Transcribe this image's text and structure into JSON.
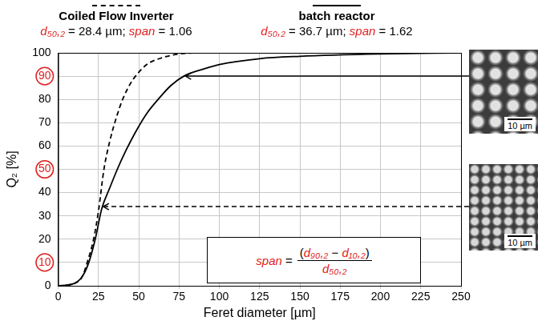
{
  "chart_data": {
    "type": "line",
    "x_label": "Feret diameter [µm]",
    "y_label": "Q₂ [%]",
    "xlim": [
      0,
      250
    ],
    "xticks": [
      0,
      25,
      50,
      75,
      100,
      125,
      150,
      175,
      200,
      225,
      250
    ],
    "ylim": [
      0,
      100
    ],
    "yticks": [
      0,
      10,
      20,
      30,
      40,
      50,
      60,
      70,
      80,
      90,
      100
    ],
    "grid": true,
    "legend": "top",
    "series": [
      {
        "name": "Coiled Flow Inverter",
        "color": "#000000",
        "line_style": "dashed",
        "stats": "d₅₀,₂ = 28.4 µm; span = 1.06",
        "x": [
          0,
          10,
          15,
          18,
          22,
          25,
          28.4,
          32,
          36,
          40,
          45,
          48,
          55,
          65,
          75,
          85
        ],
        "values": [
          0,
          1,
          4,
          10,
          20,
          32,
          50,
          62,
          72,
          80,
          87,
          90,
          95,
          98,
          99.5,
          100
        ]
      },
      {
        "name": "batch reactor",
        "color": "#000000",
        "line_style": "solid",
        "stats": "d₅₀,₂ = 36.7 µm; span = 1.62",
        "x": [
          0,
          10,
          15,
          19,
          23,
          27,
          32,
          36.7,
          42,
          48,
          55,
          62,
          70,
          78,
          90,
          100,
          125,
          150,
          200,
          250
        ],
        "values": [
          0,
          1,
          4,
          10,
          20,
          33,
          42,
          50,
          58,
          66,
          74,
          80,
          86,
          90,
          93,
          95,
          97.5,
          98.5,
          99.5,
          100
        ]
      }
    ],
    "circled_yticks": [
      10,
      50,
      90
    ],
    "formula": {
      "lhs": "span =",
      "numerator": "(d₉₀,₂ − d₁₀,₂)",
      "denominator": "d₅₀,₂"
    },
    "annotations": [
      {
        "series": "batch reactor",
        "x": 78,
        "y": 90,
        "image_scale_bar": "10 µm"
      },
      {
        "series": "Coiled Flow Inverter",
        "x": 27,
        "y": 34,
        "image_scale_bar": "10 µm"
      }
    ]
  }
}
